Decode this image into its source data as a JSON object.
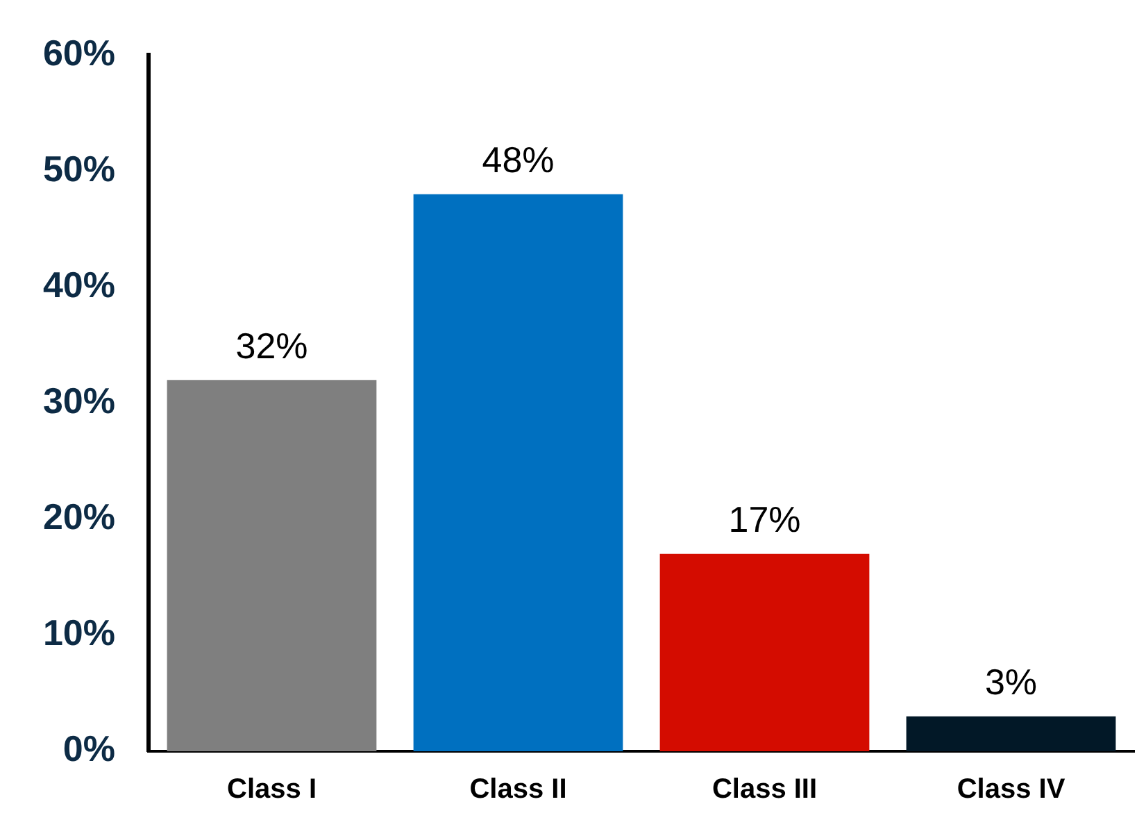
{
  "chart_data": {
    "type": "bar",
    "categories": [
      "Class I",
      "Class II",
      "Class III",
      "Class IV"
    ],
    "values": [
      32,
      48,
      17,
      3
    ],
    "colors": [
      "#7f7f7f",
      "#0070c0",
      "#d40c00",
      "#021827"
    ],
    "value_labels": [
      "32%",
      "48%",
      "17%",
      "3%"
    ],
    "ylim": [
      0,
      60
    ],
    "yticks": [
      {
        "value": 0,
        "label": "0%"
      },
      {
        "value": 10,
        "label": "10%"
      },
      {
        "value": 20,
        "label": "20%"
      },
      {
        "value": 30,
        "label": "30%"
      },
      {
        "value": 40,
        "label": "40%"
      },
      {
        "value": 50,
        "label": "50%"
      },
      {
        "value": 60,
        "label": "60%"
      }
    ],
    "grid": false,
    "legend": false
  }
}
